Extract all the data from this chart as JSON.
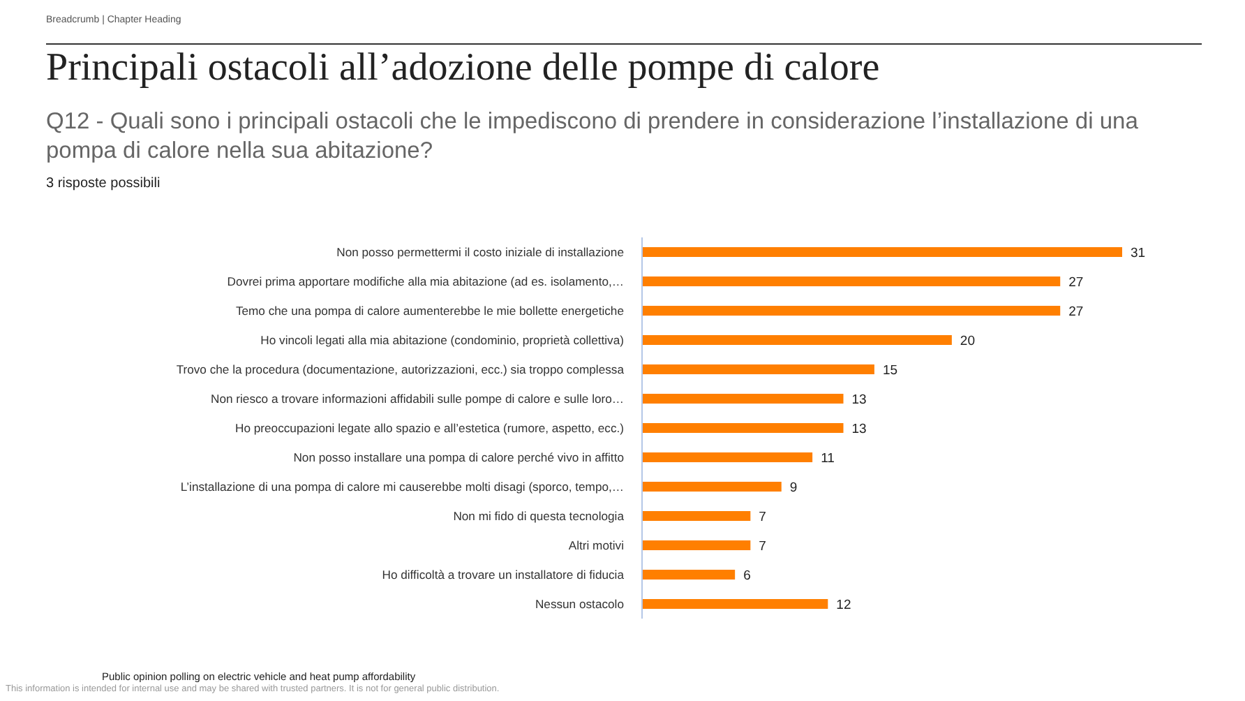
{
  "chart_data": {
    "type": "bar",
    "orientation": "horizontal",
    "title": "Principali ostacoli all’adozione delle pompe di calore",
    "subtitle": "Q12 - Quali sono i principali ostacoli che le impediscono di prendere in considerazione l’installazione di una pompa di calore nella sua abitazione?",
    "annotations": [
      "Breadcrumb | Chapter Heading",
      "3 risposte possibili",
      "Public opinion polling on electric vehicle and heat pump affordability",
      "This information is intended for internal use and may be shared with trusted partners. It is not for general public distribution."
    ],
    "categories": [
      "Non posso permettermi il costo iniziale di installazione",
      "Dovrei prima apportare modifiche alla mia abitazione (ad es. isolamento,…",
      "Temo che una pompa di calore aumenterebbe le mie bollette energetiche",
      "Ho vincoli legati alla mia abitazione (condominio, proprietà collettiva)",
      "Trovo che la procedura (documentazione, autorizzazioni, ecc.) sia troppo complessa",
      "Non riesco a trovare informazioni affidabili sulle pompe di calore e sulle loro…",
      "Ho preoccupazioni legate allo spazio e all’estetica (rumore, aspetto, ecc.)",
      "Non posso installare una pompa di calore perché vivo in affitto",
      "L’installazione di una pompa di calore mi causerebbe molti disagi (sporco, tempo,…",
      "Non mi fido di questa tecnologia",
      "Altri motivi",
      "Ho difficoltà a trovare un installatore di fiducia",
      "Nessun ostacolo"
    ],
    "values": [
      31,
      27,
      27,
      20,
      15,
      13,
      13,
      11,
      9,
      7,
      7,
      6,
      12
    ],
    "color": "#ff7f00",
    "xlim": [
      0,
      31
    ],
    "data_labels": true,
    "tick_labels": "y"
  }
}
